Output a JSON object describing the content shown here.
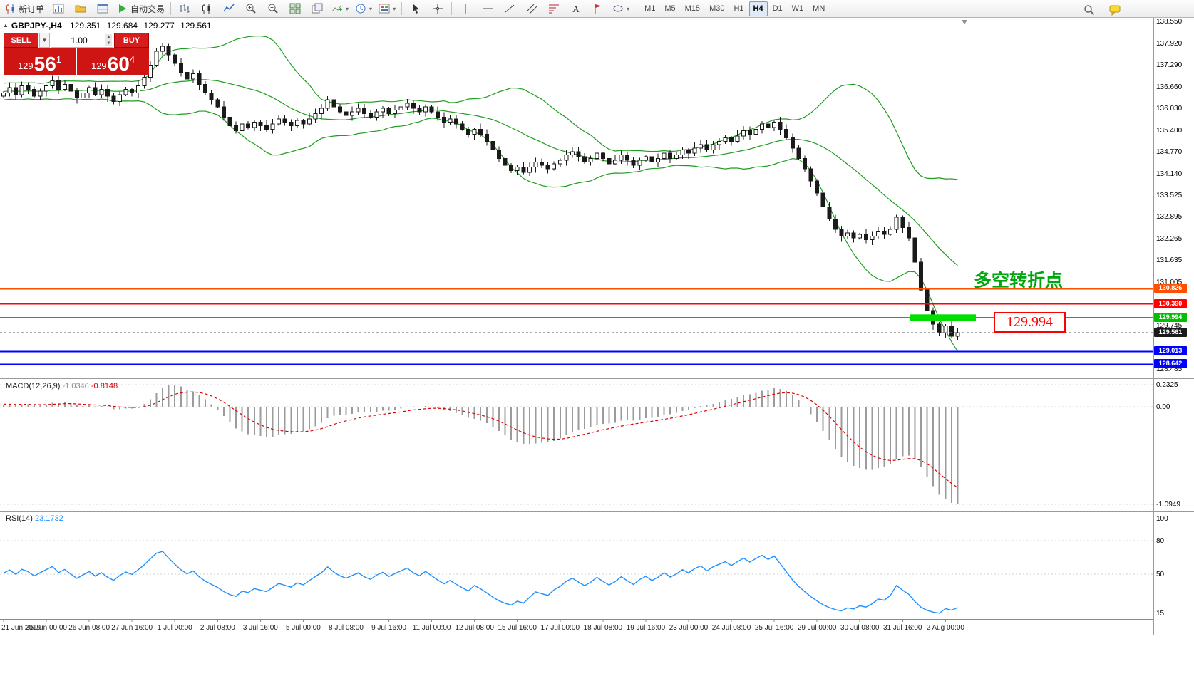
{
  "toolbar": {
    "new_order_label": "新订单",
    "autotrading_label": "自动交易",
    "timeframes": [
      "M1",
      "M5",
      "M15",
      "M30",
      "H1",
      "H4",
      "D1",
      "W1",
      "MN"
    ],
    "active_timeframe": "H4"
  },
  "chart": {
    "header": {
      "symbol": "GBPJPY-,H4",
      "open": "129.351",
      "high": "129.684",
      "low": "129.277",
      "close": "129.561"
    },
    "trade_panel": {
      "sell_label": "SELL",
      "buy_label": "BUY",
      "volume": "1.00",
      "sell_price": {
        "prefix": "129",
        "big": "56",
        "sup": "1"
      },
      "buy_price": {
        "prefix": "129",
        "big": "60",
        "sup": "4"
      }
    },
    "annotation": "多空转折点",
    "callout": "129.994",
    "y_axis_labels": [
      "138.550",
      "137.920",
      "137.290",
      "136.660",
      "136.030",
      "135.400",
      "134.770",
      "134.140",
      "133.525",
      "132.895",
      "132.265",
      "131.635",
      "131.005",
      "129.745",
      "128.485"
    ],
    "hlines": [
      {
        "price": 130.826,
        "label": "130.826",
        "color": "#FF5000"
      },
      {
        "price": 130.39,
        "label": "130.390",
        "color": "#FF0000"
      },
      {
        "price": 129.994,
        "label": "129.994",
        "color": "#00C000",
        "highlight": true
      },
      {
        "price": 129.013,
        "label": "129.013",
        "color": "#0000FF"
      },
      {
        "price": 128.642,
        "label": "128.642",
        "color": "#0000FF"
      }
    ],
    "current_price": {
      "value": 129.561,
      "label": "129.561"
    }
  },
  "chart_data": {
    "type": "candlestick",
    "symbol": "GBPJPY",
    "timeframe": "H4",
    "price_max": 138.55,
    "price_min": 128.485,
    "closes": [
      136.5,
      136.65,
      136.45,
      136.7,
      136.6,
      136.4,
      136.55,
      136.7,
      136.85,
      136.6,
      136.75,
      136.55,
      136.35,
      136.5,
      136.65,
      136.45,
      136.6,
      136.4,
      136.25,
      136.45,
      136.6,
      136.5,
      136.7,
      136.95,
      137.3,
      137.7,
      137.85,
      137.6,
      137.35,
      137.1,
      136.9,
      137.05,
      136.75,
      136.5,
      136.3,
      136.1,
      135.8,
      135.55,
      135.4,
      135.6,
      135.5,
      135.65,
      135.55,
      135.45,
      135.6,
      135.75,
      135.65,
      135.55,
      135.7,
      135.6,
      135.75,
      135.9,
      136.05,
      136.3,
      136.1,
      135.95,
      135.85,
      135.95,
      136.05,
      135.9,
      135.8,
      135.95,
      136.05,
      135.9,
      136.0,
      136.1,
      136.2,
      136.05,
      135.95,
      136.1,
      135.95,
      135.8,
      135.65,
      135.75,
      135.6,
      135.45,
      135.3,
      135.45,
      135.3,
      135.1,
      134.85,
      134.6,
      134.4,
      134.25,
      134.35,
      134.2,
      134.35,
      134.5,
      134.4,
      134.3,
      134.45,
      134.55,
      134.7,
      134.8,
      134.65,
      134.5,
      134.6,
      134.75,
      134.6,
      134.45,
      134.55,
      134.7,
      134.55,
      134.4,
      134.55,
      134.65,
      134.5,
      134.6,
      134.75,
      134.6,
      134.7,
      134.85,
      134.75,
      134.9,
      135.0,
      134.85,
      135.0,
      135.1,
      135.2,
      135.1,
      135.25,
      135.4,
      135.3,
      135.45,
      135.6,
      135.5,
      135.65,
      135.45,
      135.2,
      134.9,
      134.6,
      134.3,
      133.95,
      133.6,
      133.2,
      132.85,
      132.55,
      132.35,
      132.45,
      132.3,
      132.4,
      132.25,
      132.35,
      132.5,
      132.4,
      132.55,
      132.9,
      132.6,
      132.3,
      131.6,
      130.8,
      130.2,
      129.8,
      129.55,
      129.75,
      129.45,
      129.561
    ],
    "x_labels": [
      "21 Jun 2019",
      "25 Jun 00:00",
      "26 Jun 08:00",
      "27 Jun 16:00",
      "1 Jul 00:00",
      "2 Jul 08:00",
      "3 Jul 16:00",
      "5 Jul 00:00",
      "8 Jul 08:00",
      "9 Jul 16:00",
      "11 Jul 00:00",
      "12 Jul 08:00",
      "15 Jul 16:00",
      "17 Jul 00:00",
      "18 Jul 08:00",
      "19 Jul 16:00",
      "23 Jul 00:00",
      "24 Jul 08:00",
      "25 Jul 16:00",
      "29 Jul 00:00",
      "30 Jul 08:00",
      "31 Jul 16:00",
      "2 Aug 00:00"
    ],
    "label_every": 7,
    "indicators": {
      "bollinger": {
        "period": 20,
        "deviation": 2,
        "color": "#1e9e1e"
      },
      "macd": {
        "name": "MACD(12,26,9)",
        "value_main": "-1.0346",
        "value_signal": "-0.8148",
        "scale_labels": [
          "0.2325",
          "0.00",
          "-1.0949"
        ]
      },
      "rsi": {
        "name": "RSI(14)",
        "value": "23.1732",
        "scale_labels": [
          "100",
          "80",
          "50",
          "15"
        ]
      }
    }
  }
}
